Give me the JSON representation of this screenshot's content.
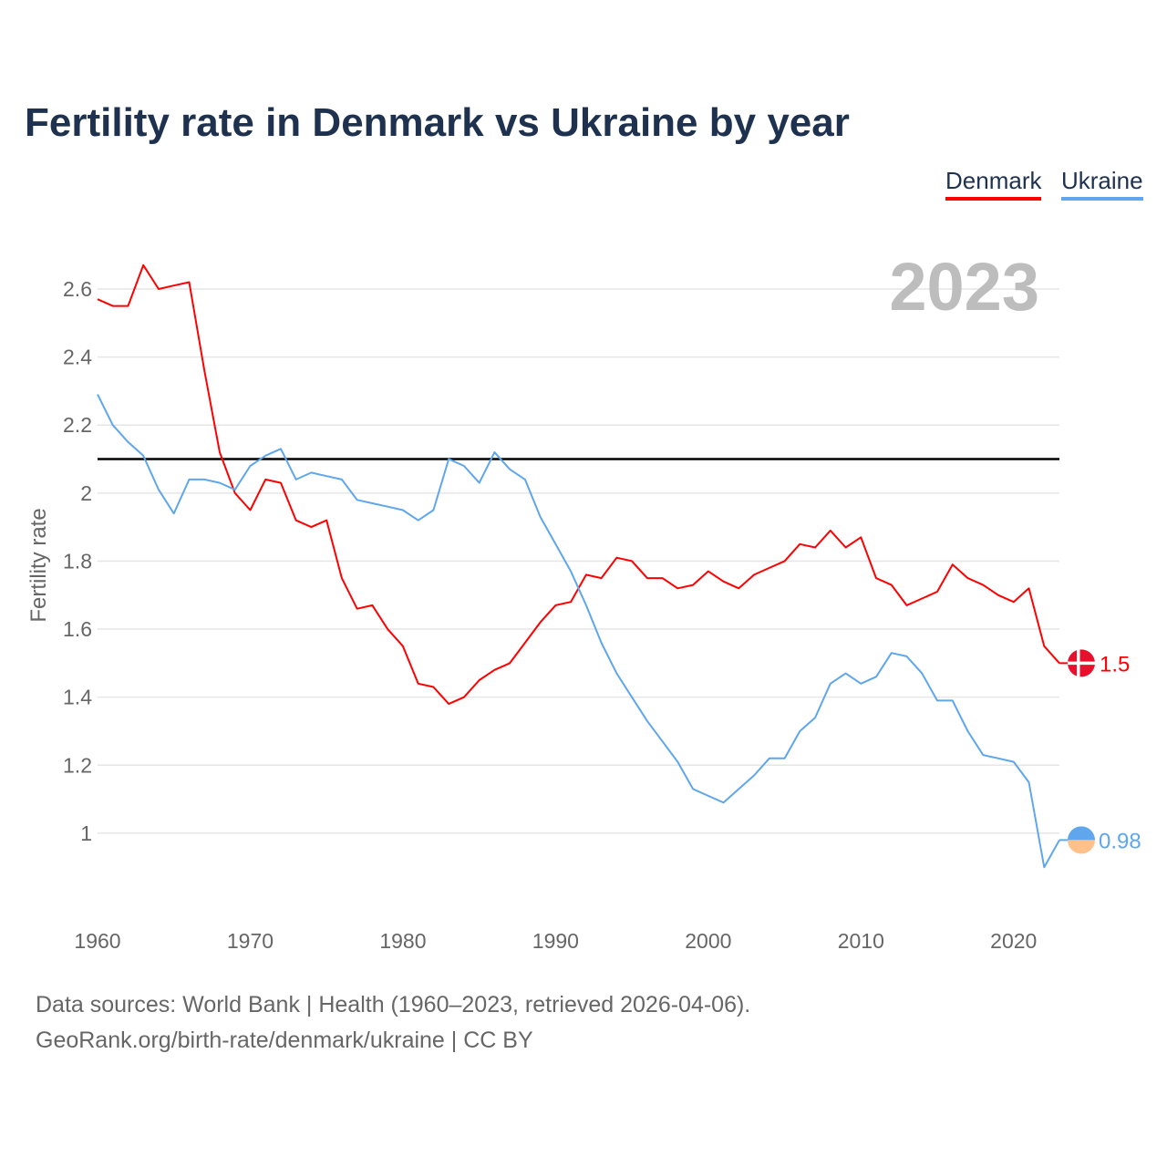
{
  "title": "Fertility rate in Denmark vs Ukraine by year",
  "footer": {
    "line1": "Data sources: World Bank | Health (1960–2023, retrieved 2026-04-06).",
    "line2": "GeoRank.org/birth-rate/denmark/ukraine | CC BY"
  },
  "chart_data": {
    "type": "line",
    "title": "Fertility rate in Denmark vs Ukraine by year",
    "year_label": "2023",
    "xlabel": "",
    "ylabel": "Fertility rate",
    "xlim": [
      1960,
      2023
    ],
    "ylim": [
      0.78,
      2.75
    ],
    "x_ticks": [
      1960,
      1970,
      1980,
      1990,
      2000,
      2010,
      2020
    ],
    "y_ticks": [
      1,
      1.2,
      1.4,
      1.6,
      1.8,
      2,
      2.2,
      2.4,
      2.6
    ],
    "y_tick_labels": [
      "1",
      "1.2",
      "1.4",
      "1.6",
      "1.8",
      "2",
      "2.2",
      "2.4",
      "2.6"
    ],
    "x_tick_labels": [
      "1960",
      "1970",
      "1980",
      "1990",
      "2000",
      "2010",
      "2020"
    ],
    "grid": true,
    "legend_position": "top-right",
    "reference_line": {
      "value": 2.1,
      "color": "#000000"
    },
    "x": [
      1960,
      1961,
      1962,
      1963,
      1964,
      1965,
      1966,
      1967,
      1968,
      1969,
      1970,
      1971,
      1972,
      1973,
      1974,
      1975,
      1976,
      1977,
      1978,
      1979,
      1980,
      1981,
      1982,
      1983,
      1984,
      1985,
      1986,
      1987,
      1988,
      1989,
      1990,
      1991,
      1992,
      1993,
      1994,
      1995,
      1996,
      1997,
      1998,
      1999,
      2000,
      2001,
      2002,
      2003,
      2004,
      2005,
      2006,
      2007,
      2008,
      2009,
      2010,
      2011,
      2012,
      2013,
      2014,
      2015,
      2016,
      2017,
      2018,
      2019,
      2020,
      2021,
      2022,
      2023
    ],
    "series": [
      {
        "name": "Denmark",
        "color": "#ff0000",
        "end_label": "1.5",
        "values": [
          2.57,
          2.55,
          2.55,
          2.67,
          2.6,
          2.61,
          2.62,
          2.36,
          2.12,
          2.0,
          1.95,
          2.04,
          2.03,
          1.92,
          1.9,
          1.92,
          1.75,
          1.66,
          1.67,
          1.6,
          1.55,
          1.44,
          1.43,
          1.38,
          1.4,
          1.45,
          1.48,
          1.5,
          1.56,
          1.62,
          1.67,
          1.68,
          1.76,
          1.75,
          1.81,
          1.8,
          1.75,
          1.75,
          1.72,
          1.73,
          1.77,
          1.74,
          1.72,
          1.76,
          1.78,
          1.8,
          1.85,
          1.84,
          1.89,
          1.84,
          1.87,
          1.75,
          1.73,
          1.67,
          1.69,
          1.71,
          1.79,
          1.75,
          1.73,
          1.7,
          1.68,
          1.72,
          1.55,
          1.5
        ]
      },
      {
        "name": "Ukraine",
        "color": "#5fa6ec",
        "end_label": "0.98",
        "values": [
          2.29,
          2.2,
          2.15,
          2.11,
          2.01,
          1.94,
          2.04,
          2.04,
          2.03,
          2.01,
          2.08,
          2.11,
          2.13,
          2.04,
          2.06,
          2.05,
          2.04,
          1.98,
          1.97,
          1.96,
          1.95,
          1.92,
          1.95,
          2.1,
          2.08,
          2.03,
          2.12,
          2.07,
          2.04,
          1.93,
          1.85,
          1.77,
          1.67,
          1.56,
          1.47,
          1.4,
          1.33,
          1.27,
          1.21,
          1.13,
          1.11,
          1.09,
          1.13,
          1.17,
          1.22,
          1.22,
          1.3,
          1.34,
          1.44,
          1.47,
          1.44,
          1.46,
          1.53,
          1.52,
          1.47,
          1.39,
          1.39,
          1.3,
          1.23,
          1.22,
          1.21,
          1.15,
          0.9,
          0.98
        ]
      }
    ]
  }
}
